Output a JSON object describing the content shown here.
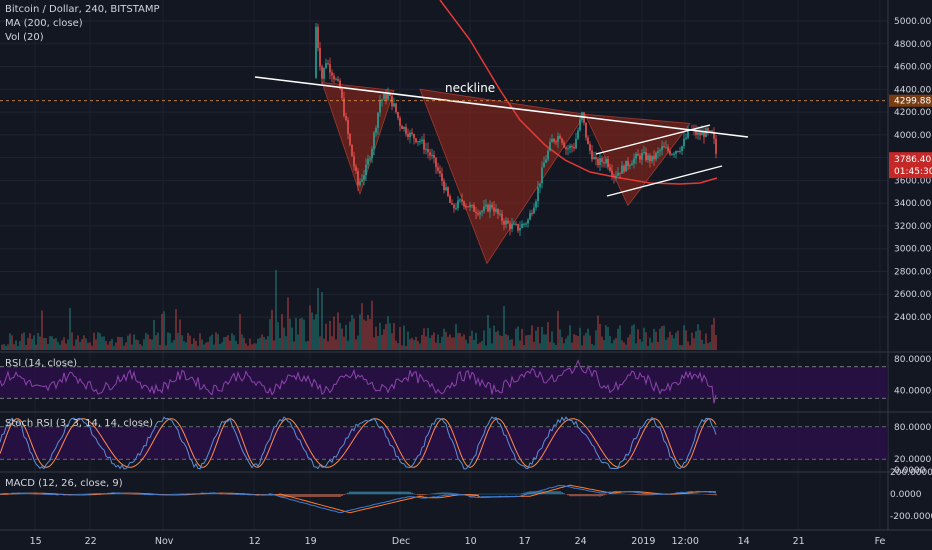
{
  "header": {
    "symbol_line": "Bitcoin / Dollar, 240, BITSTAMP",
    "ma_label": "MA (200, close)",
    "vol_label": "Vol (20)"
  },
  "panes": {
    "rsi_label": "RSI (14, close)",
    "stoch_label": "Stoch RSI (3, 3, 14, 14, close)",
    "macd_label": "MACD (12, 26, close, 9)"
  },
  "colors": {
    "background": "#131722",
    "up": "#26a69a",
    "down": "#ef5350",
    "ma": "#e53935",
    "pattern_fill": "#7b241c",
    "trendline": "#ffffff",
    "rsi": "#8e44ad",
    "osc_band": "#2a0f4a",
    "stoch_k": "#5b8fd6",
    "stoch_d": "#ff8a50",
    "macd": "#3a7bd5",
    "signal": "#ff7a2a"
  },
  "chart_data": {
    "type": "candlestick",
    "price_axis": {
      "ticks": [
        5000,
        4800,
        4600,
        4400,
        4200,
        4000,
        3800,
        3600,
        3400,
        3200,
        3000,
        2800,
        2600,
        2400
      ],
      "tick_labels": [
        "5000.00",
        "4800.00",
        "4600.00",
        "4400.00",
        "4200.00",
        "4000.00",
        "3800.00",
        "3600.00",
        "3400.00",
        "3200.00",
        "3000.00",
        "2800.00",
        "2600.00",
        "2400.00"
      ],
      "range": [
        2300,
        5100
      ]
    },
    "horizontal_level": {
      "value": 4299.88,
      "label": "4299.88"
    },
    "last_price": {
      "value": 3786.4,
      "label": "3786.40",
      "countdown": "01:45:30"
    },
    "time_axis": {
      "labels": [
        "15",
        "22",
        "Nov",
        "12",
        "19",
        "Dec",
        "10",
        "17",
        "24",
        "2019",
        "12:00",
        "14",
        "21",
        "Fe"
      ]
    },
    "candles_approx": [
      {
        "x": "19",
        "price": 4800
      },
      {
        "x": "Nov 19-20",
        "price": 4450
      },
      {
        "x": "Nov 25",
        "price": 3600
      },
      {
        "x": "Nov 28",
        "price": 4300
      },
      {
        "x": "Dec 6",
        "price": 3500
      },
      {
        "x": "Dec 15",
        "price": 3200
      },
      {
        "x": "Dec 20",
        "price": 3900
      },
      {
        "x": "Dec 24",
        "price": 4200
      },
      {
        "x": "Dec 29",
        "price": 3700
      },
      {
        "x": "2019",
        "price": 3850
      },
      {
        "x": "Jan 8",
        "price": 4050
      },
      {
        "x": "Jan 10",
        "price": 3786.4
      }
    ],
    "annotations": [
      {
        "text": "neckline"
      }
    ],
    "pattern": "inverse head and shoulders",
    "rsi": {
      "ticks": [
        "80.0000",
        "40.0000"
      ],
      "levels": [
        70,
        30
      ]
    },
    "stoch_rsi": {
      "ticks": [
        "80.0000",
        "20.0000",
        "0.0000"
      ],
      "levels": [
        80,
        20
      ]
    },
    "macd": {
      "ticks": [
        "200.0000",
        "0.0000",
        "-200.0000"
      ]
    }
  }
}
